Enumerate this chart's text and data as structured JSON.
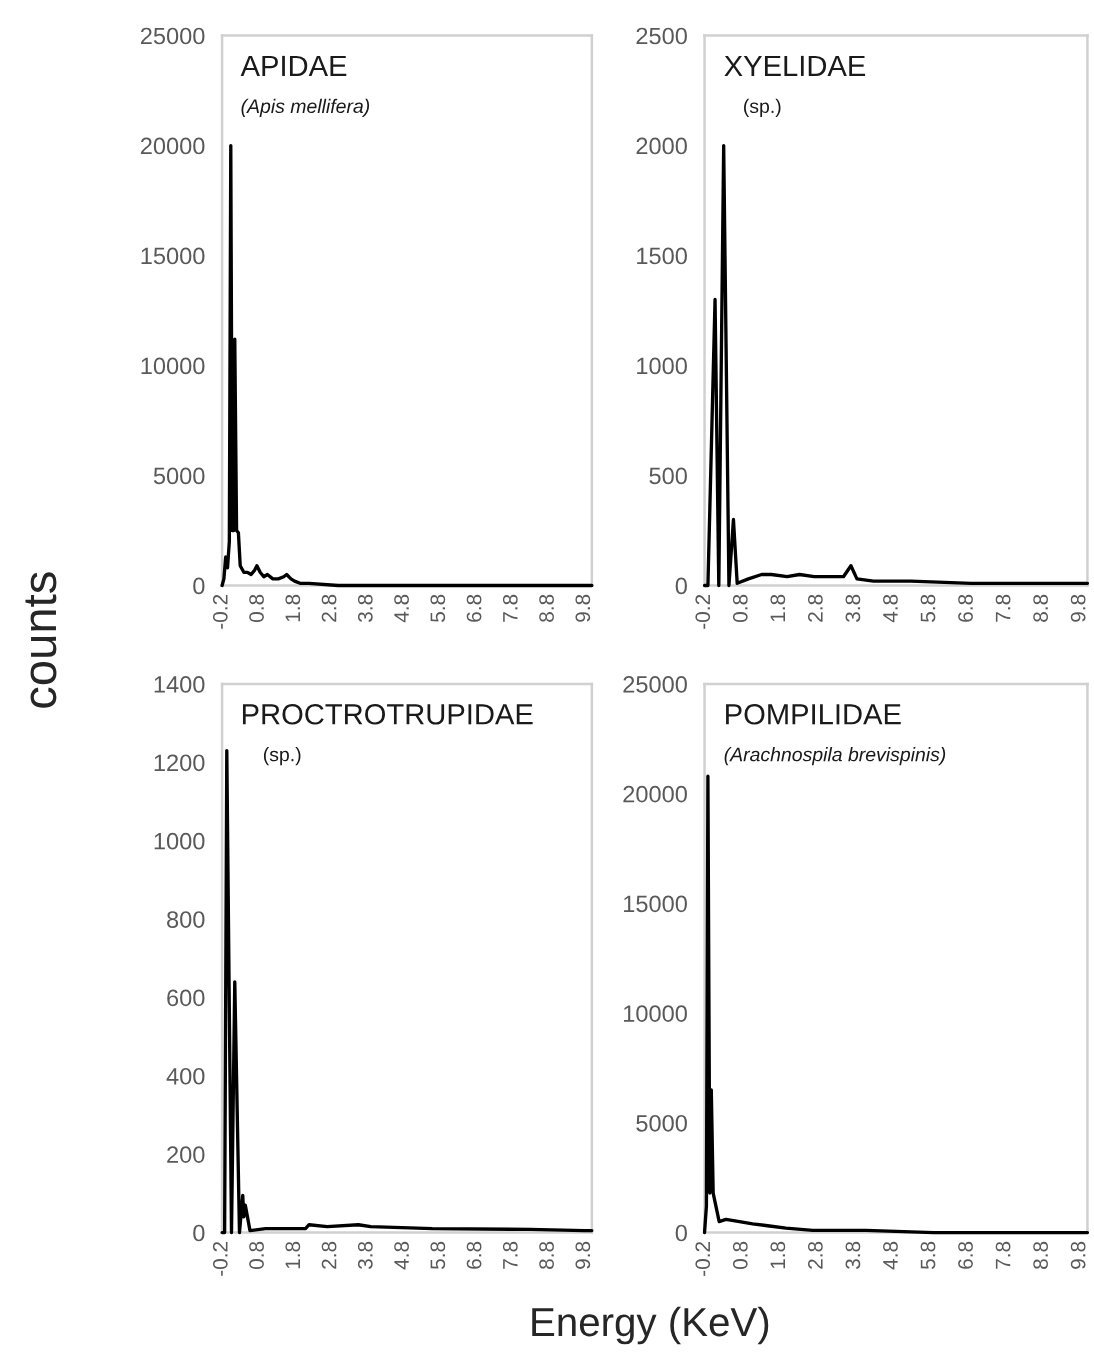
{
  "chart_data": [
    {
      "type": "line",
      "title": "APIDAE",
      "subtitle": "(Apis mellifera)",
      "ylabel": "counts",
      "series": [
        {
          "color": "#000000",
          "x": [
            -0.2,
            -0.15,
            -0.1,
            -0.05,
            0.0,
            0.04,
            0.08,
            0.12,
            0.15,
            0.2,
            0.25,
            0.3,
            0.4,
            0.5,
            0.6,
            0.7,
            0.76,
            0.85,
            0.95,
            1.05,
            1.2,
            1.35,
            1.5,
            1.58,
            1.7,
            1.8,
            1.95,
            2.2,
            3.0,
            4.0,
            6.0,
            8.0,
            10.0
          ],
          "values": [
            0,
            300,
            1300,
            800,
            2000,
            20000,
            2500,
            2500,
            11200,
            2500,
            2400,
            900,
            600,
            600,
            500,
            700,
            900,
            600,
            400,
            500,
            300,
            300,
            400,
            500,
            300,
            200,
            100,
            100,
            0,
            0,
            0,
            0,
            0
          ]
        }
      ],
      "xlim": [
        -0.2,
        10.0
      ],
      "xticks": [
        -0.2,
        0.8,
        1.8,
        2.8,
        3.8,
        4.8,
        5.8,
        6.8,
        7.8,
        8.8,
        9.8
      ],
      "ylim": [
        0,
        25000
      ],
      "yticks": [
        0,
        5000,
        10000,
        15000,
        20000,
        25000
      ]
    },
    {
      "type": "line",
      "title": "XYELIDAE",
      "subtitle": "(sp.)",
      "series": [
        {
          "color": "#000000",
          "x": [
            -0.2,
            -0.11,
            0.08,
            0.18,
            0.31,
            0.45,
            0.57,
            0.67,
            0.97,
            1.32,
            1.58,
            2.0,
            2.33,
            2.72,
            3.5,
            3.7,
            3.86,
            4.3,
            5.3,
            6.9,
            8.5,
            10.0
          ],
          "values": [
            0,
            0,
            1300,
            0,
            2000,
            0,
            300,
            10,
            30,
            50,
            50,
            40,
            50,
            40,
            40,
            90,
            30,
            20,
            20,
            10,
            10,
            10
          ]
        }
      ],
      "xlim": [
        -0.2,
        10.0
      ],
      "xticks": [
        -0.2,
        0.8,
        1.8,
        2.8,
        3.8,
        4.8,
        5.8,
        6.8,
        7.8,
        8.8,
        9.8
      ],
      "ylim": [
        0,
        2500
      ],
      "yticks": [
        0,
        500,
        1000,
        1500,
        2000,
        2500
      ]
    },
    {
      "type": "line",
      "title": "PROCTROTRUPIDAE",
      "subtitle": "(sp.)",
      "xlabel": "Energy (KeV)",
      "series": [
        {
          "color": "#000000",
          "x": [
            -0.2,
            -0.13,
            -0.07,
            0.06,
            0.15,
            0.28,
            0.37,
            0.4,
            0.44,
            0.57,
            1.0,
            1.6,
            2.1,
            2.2,
            2.7,
            3.56,
            3.9,
            5.6,
            8.3,
            9.8,
            10.0
          ],
          "values": [
            0,
            0,
            1230,
            0,
            640,
            0,
            95,
            40,
            70,
            5,
            10,
            10,
            10,
            20,
            15,
            20,
            15,
            10,
            8,
            5,
            5
          ]
        }
      ],
      "xlim": [
        -0.2,
        10.0
      ],
      "xticks": [
        -0.2,
        0.8,
        1.8,
        2.8,
        3.8,
        4.8,
        5.8,
        6.8,
        7.8,
        8.8,
        9.8
      ],
      "ylim": [
        0,
        1400
      ],
      "yticks": [
        0,
        200,
        400,
        600,
        800,
        1000,
        1200,
        1400
      ]
    },
    {
      "type": "line",
      "title": "POMPILIDAE",
      "subtitle": "(Arachnospila brevispinis)",
      "series": [
        {
          "color": "#000000",
          "x": [
            -0.2,
            -0.15,
            -0.11,
            -0.06,
            -0.02,
            0.03,
            0.19,
            0.37,
            0.73,
            1.08,
            1.53,
            1.97,
            2.68,
            4.1,
            5.9,
            8.0,
            10.0
          ],
          "values": [
            0,
            1200,
            20800,
            1800,
            6500,
            1800,
            500,
            600,
            500,
            400,
            300,
            200,
            100,
            100,
            0,
            0,
            0
          ]
        }
      ],
      "xlim": [
        -0.2,
        10.0
      ],
      "xticks": [
        -0.2,
        0.8,
        1.8,
        2.8,
        3.8,
        4.8,
        5.8,
        6.8,
        7.8,
        8.8,
        9.8
      ],
      "ylim": [
        0,
        25000
      ],
      "yticks": [
        0,
        5000,
        10000,
        15000,
        20000,
        25000
      ]
    }
  ]
}
